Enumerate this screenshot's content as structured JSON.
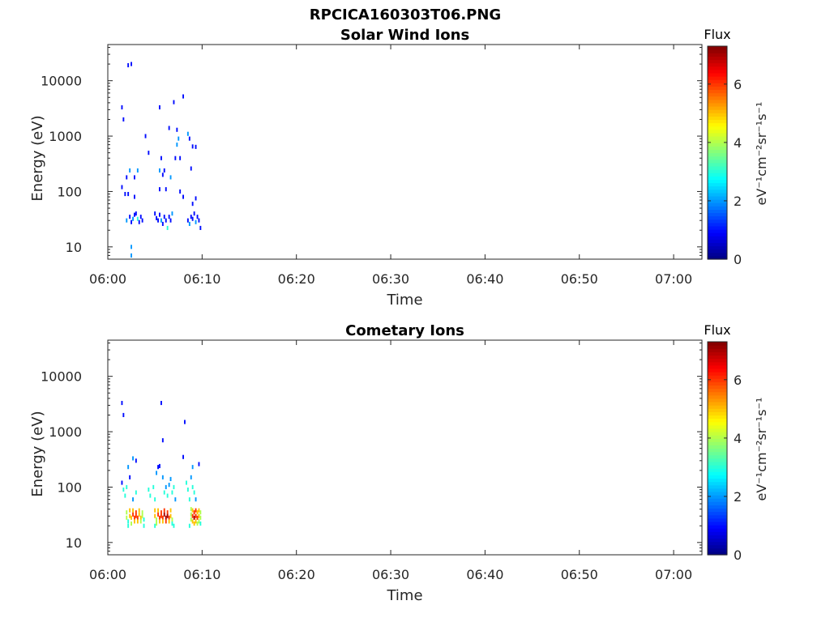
{
  "figure_title": "RPCICA160303T06.PNG",
  "chart_data": [
    {
      "type": "heatmap",
      "title": "Solar Wind Ions",
      "xlabel": "Time",
      "ylabel": "Energy (eV)",
      "y_scale": "log",
      "ylim": [
        6,
        45000
      ],
      "xlim": [
        "06:00",
        "07:03"
      ],
      "x_ticks": [
        "06:00",
        "06:10",
        "06:20",
        "06:30",
        "06:40",
        "06:50",
        "07:00"
      ],
      "y_ticks": [
        "10",
        "100",
        "1000",
        "10000"
      ],
      "colorbar": {
        "title": "Flux",
        "label": "eV-1cm-2sr-1s-1",
        "range": [
          0,
          7.3
        ],
        "ticks": [
          "0",
          "2",
          "4",
          "6"
        ],
        "colormap": "jet"
      },
      "cells": [
        [
          "06:01:30",
          3300,
          1
        ],
        [
          "06:01:40",
          2000,
          1
        ],
        [
          "06:02:10",
          19000,
          1
        ],
        [
          "06:02:30",
          20000,
          1
        ],
        [
          "06:01:30",
          120,
          1
        ],
        [
          "06:01:50",
          90,
          1
        ],
        [
          "06:02:10",
          90,
          1
        ],
        [
          "06:02:00",
          180,
          1
        ],
        [
          "06:02:20",
          240,
          2
        ],
        [
          "06:02:50",
          180,
          1
        ],
        [
          "06:03:10",
          240,
          2
        ],
        [
          "06:02:50",
          80,
          1
        ],
        [
          "06:04:00",
          1000,
          1
        ],
        [
          "06:04:20",
          500,
          1
        ],
        [
          "06:02:00",
          30,
          2
        ],
        [
          "06:02:20",
          35,
          1
        ],
        [
          "06:02:30",
          28,
          1
        ],
        [
          "06:02:40",
          32,
          2
        ],
        [
          "06:02:50",
          38,
          1
        ],
        [
          "06:03:00",
          40,
          1
        ],
        [
          "06:03:10",
          32,
          3
        ],
        [
          "06:03:20",
          28,
          1
        ],
        [
          "06:03:30",
          35,
          1
        ],
        [
          "06:03:40",
          30,
          1
        ],
        [
          "06:02:30",
          10,
          2
        ],
        [
          "06:02:30",
          7,
          2
        ],
        [
          "06:05:00",
          40,
          1
        ],
        [
          "06:05:10",
          33,
          1
        ],
        [
          "06:05:20",
          30,
          1
        ],
        [
          "06:05:30",
          38,
          1
        ],
        [
          "06:05:40",
          30,
          2
        ],
        [
          "06:05:50",
          26,
          1
        ],
        [
          "06:06:00",
          35,
          1
        ],
        [
          "06:06:10",
          30,
          1
        ],
        [
          "06:06:20",
          22,
          3
        ],
        [
          "06:06:30",
          35,
          1
        ],
        [
          "06:06:40",
          30,
          1
        ],
        [
          "06:06:50",
          40,
          2
        ],
        [
          "06:05:30",
          3300,
          1
        ],
        [
          "06:06:30",
          1400,
          1
        ],
        [
          "06:07:00",
          4100,
          1
        ],
        [
          "06:07:20",
          1300,
          1
        ],
        [
          "06:08:00",
          5200,
          1
        ],
        [
          "06:05:40",
          400,
          1
        ],
        [
          "06:05:30",
          240,
          2
        ],
        [
          "06:05:50",
          200,
          1
        ],
        [
          "06:06:00",
          240,
          1
        ],
        [
          "06:06:10",
          110,
          1
        ],
        [
          "06:05:30",
          110,
          1
        ],
        [
          "06:06:40",
          180,
          2
        ],
        [
          "06:07:10",
          400,
          1
        ],
        [
          "06:07:40",
          400,
          1
        ],
        [
          "06:07:20",
          700,
          2
        ],
        [
          "06:07:30",
          900,
          2
        ],
        [
          "06:07:40",
          100,
          1
        ],
        [
          "06:08:00",
          80,
          1
        ],
        [
          "06:08:30",
          1100,
          2
        ],
        [
          "06:08:40",
          900,
          1
        ],
        [
          "06:09:00",
          650,
          1
        ],
        [
          "06:09:20",
          640,
          1
        ],
        [
          "06:08:50",
          260,
          1
        ],
        [
          "06:09:20",
          75,
          1
        ],
        [
          "06:09:00",
          60,
          1
        ],
        [
          "06:08:30",
          30,
          1
        ],
        [
          "06:08:40",
          26,
          2
        ],
        [
          "06:08:50",
          35,
          1
        ],
        [
          "06:09:00",
          32,
          1
        ],
        [
          "06:09:10",
          40,
          1
        ],
        [
          "06:09:20",
          28,
          2
        ],
        [
          "06:09:30",
          35,
          1
        ],
        [
          "06:09:40",
          30,
          1
        ],
        [
          "06:09:50",
          22,
          1
        ]
      ]
    },
    {
      "type": "heatmap",
      "title": "Cometary Ions",
      "xlabel": "Time",
      "ylabel": "Energy (eV)",
      "y_scale": "log",
      "ylim": [
        6,
        45000
      ],
      "xlim": [
        "06:00",
        "07:03"
      ],
      "x_ticks": [
        "06:00",
        "06:10",
        "06:20",
        "06:30",
        "06:40",
        "06:50",
        "07:00"
      ],
      "y_ticks": [
        "10",
        "100",
        "1000",
        "10000"
      ],
      "colorbar": {
        "title": "Flux",
        "label": "eV-1cm-2sr-1s-1",
        "range": [
          0,
          7.3
        ],
        "ticks": [
          "0",
          "2",
          "4",
          "6"
        ],
        "colormap": "jet"
      },
      "cells": [
        [
          "06:01:30",
          3300,
          1
        ],
        [
          "06:01:40",
          2000,
          1
        ],
        [
          "06:05:40",
          3300,
          1
        ],
        [
          "06:05:50",
          700,
          1
        ],
        [
          "06:08:10",
          1500,
          1
        ],
        [
          "06:09:40",
          260,
          1
        ],
        [
          "06:08:00",
          350,
          1
        ],
        [
          "06:01:30",
          120,
          1
        ],
        [
          "06:01:40",
          90,
          3
        ],
        [
          "06:01:50",
          70,
          3
        ],
        [
          "06:02:00",
          100,
          3
        ],
        [
          "06:02:10",
          230,
          2
        ],
        [
          "06:02:20",
          150,
          1
        ],
        [
          "06:02:40",
          330,
          2
        ],
        [
          "06:03:00",
          300,
          1
        ],
        [
          "06:03:00",
          80,
          3
        ],
        [
          "06:02:40",
          60,
          2
        ],
        [
          "06:02:00",
          35,
          4
        ],
        [
          "06:02:00",
          28,
          4
        ],
        [
          "06:02:10",
          24,
          3
        ],
        [
          "06:02:20",
          38,
          5
        ],
        [
          "06:02:20",
          30,
          5
        ],
        [
          "06:02:30",
          28,
          5
        ],
        [
          "06:02:30",
          22,
          4
        ],
        [
          "06:02:40",
          38,
          5
        ],
        [
          "06:02:40",
          32,
          6
        ],
        [
          "06:02:50",
          28,
          6
        ],
        [
          "06:02:50",
          24,
          5
        ],
        [
          "06:03:00",
          35,
          6
        ],
        [
          "06:03:00",
          30,
          6
        ],
        [
          "06:03:10",
          28,
          6
        ],
        [
          "06:03:10",
          24,
          5
        ],
        [
          "06:03:20",
          38,
          5
        ],
        [
          "06:03:20",
          32,
          5
        ],
        [
          "06:03:30",
          28,
          5
        ],
        [
          "06:03:30",
          24,
          4
        ],
        [
          "06:03:40",
          35,
          4
        ],
        [
          "06:03:40",
          30,
          4
        ],
        [
          "06:03:50",
          26,
          3
        ],
        [
          "06:02:10",
          20,
          3
        ],
        [
          "06:03:50",
          20,
          3
        ],
        [
          "06:04:20",
          90,
          3
        ],
        [
          "06:04:30",
          70,
          3
        ],
        [
          "06:04:50",
          100,
          3
        ],
        [
          "06:05:00",
          60,
          3
        ],
        [
          "06:05:10",
          180,
          2
        ],
        [
          "06:05:20",
          230,
          1
        ],
        [
          "06:05:30",
          240,
          1
        ],
        [
          "06:05:50",
          150,
          2
        ],
        [
          "06:06:00",
          80,
          3
        ],
        [
          "06:06:10",
          100,
          2
        ],
        [
          "06:06:20",
          70,
          3
        ],
        [
          "06:06:30",
          110,
          2
        ],
        [
          "06:06:40",
          140,
          2
        ],
        [
          "06:06:50",
          80,
          3
        ],
        [
          "06:07:00",
          100,
          3
        ],
        [
          "06:07:10",
          60,
          2
        ],
        [
          "06:05:00",
          38,
          5
        ],
        [
          "06:05:00",
          30,
          5
        ],
        [
          "06:05:10",
          26,
          4
        ],
        [
          "06:05:10",
          22,
          4
        ],
        [
          "06:05:20",
          38,
          5
        ],
        [
          "06:05:20",
          32,
          6
        ],
        [
          "06:05:30",
          28,
          6
        ],
        [
          "06:05:30",
          24,
          5
        ],
        [
          "06:05:40",
          35,
          6
        ],
        [
          "06:05:40",
          30,
          6
        ],
        [
          "06:05:50",
          28,
          6
        ],
        [
          "06:05:50",
          24,
          5
        ],
        [
          "06:06:00",
          38,
          6
        ],
        [
          "06:06:00",
          32,
          7
        ],
        [
          "06:06:10",
          28,
          7
        ],
        [
          "06:06:10",
          24,
          6
        ],
        [
          "06:06:20",
          35,
          6
        ],
        [
          "06:06:20",
          30,
          7
        ],
        [
          "06:06:30",
          28,
          6
        ],
        [
          "06:06:30",
          24,
          5
        ],
        [
          "06:06:40",
          38,
          5
        ],
        [
          "06:06:40",
          30,
          5
        ],
        [
          "06:06:50",
          26,
          4
        ],
        [
          "06:06:50",
          22,
          3
        ],
        [
          "06:05:00",
          20,
          3
        ],
        [
          "06:07:00",
          20,
          3
        ],
        [
          "06:08:20",
          120,
          3
        ],
        [
          "06:08:30",
          90,
          3
        ],
        [
          "06:08:40",
          60,
          3
        ],
        [
          "06:08:50",
          150,
          2
        ],
        [
          "06:09:00",
          230,
          2
        ],
        [
          "06:09:00",
          100,
          3
        ],
        [
          "06:09:10",
          80,
          3
        ],
        [
          "06:09:20",
          60,
          2
        ],
        [
          "06:08:50",
          40,
          4
        ],
        [
          "06:08:50",
          32,
          4
        ],
        [
          "06:08:50",
          26,
          4
        ],
        [
          "06:09:00",
          38,
          5
        ],
        [
          "06:09:00",
          30,
          6
        ],
        [
          "06:09:00",
          24,
          5
        ],
        [
          "06:09:10",
          35,
          6
        ],
        [
          "06:09:10",
          28,
          7
        ],
        [
          "06:09:10",
          22,
          5
        ],
        [
          "06:09:20",
          38,
          6
        ],
        [
          "06:09:20",
          30,
          6
        ],
        [
          "06:09:20",
          24,
          5
        ],
        [
          "06:09:30",
          35,
          5
        ],
        [
          "06:09:30",
          28,
          6
        ],
        [
          "06:09:30",
          22,
          4
        ],
        [
          "06:09:40",
          38,
          5
        ],
        [
          "06:09:40",
          30,
          5
        ],
        [
          "06:09:40",
          24,
          4
        ],
        [
          "06:09:50",
          35,
          4
        ],
        [
          "06:09:50",
          28,
          4
        ],
        [
          "06:09:50",
          22,
          3
        ],
        [
          "06:08:40",
          20,
          3
        ]
      ]
    }
  ]
}
